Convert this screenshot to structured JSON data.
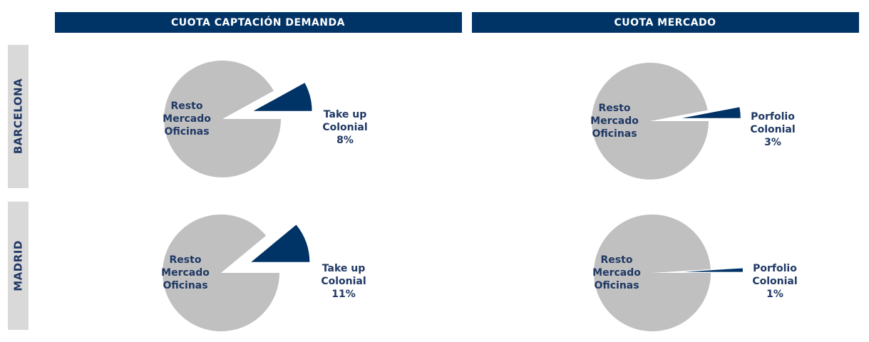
{
  "column_headers": [
    "CUOTA CAPTACIÓN DEMANDA",
    "CUOTA MERCADO"
  ],
  "row_labels": [
    "BARCELONA",
    "MADRID"
  ],
  "chart_data": [
    {
      "type": "pie",
      "categories": [
        "Resto Mercado Oficinas",
        "Take up Colonial"
      ],
      "values": [
        92,
        8
      ],
      "value_labels": [
        null,
        "8%"
      ],
      "colors": [
        "#c0c0c0",
        "#003366"
      ]
    },
    {
      "type": "pie",
      "categories": [
        "Resto Mercado Oficinas",
        "Porfolio Colonial"
      ],
      "values": [
        97,
        3
      ],
      "value_labels": [
        null,
        "3%"
      ],
      "colors": [
        "#c0c0c0",
        "#003366"
      ]
    },
    {
      "type": "pie",
      "categories": [
        "Resto Mercado Oficinas",
        "Take up Colonial"
      ],
      "values": [
        89,
        11
      ],
      "value_labels": [
        null,
        "11%"
      ],
      "colors": [
        "#c0c0c0",
        "#003366"
      ]
    },
    {
      "type": "pie",
      "categories": [
        "Resto Mercado Oficinas",
        "Porfolio Colonial"
      ],
      "values": [
        99,
        1
      ],
      "value_labels": [
        null,
        "1%"
      ],
      "colors": [
        "#c0c0c0",
        "#003366"
      ]
    }
  ]
}
